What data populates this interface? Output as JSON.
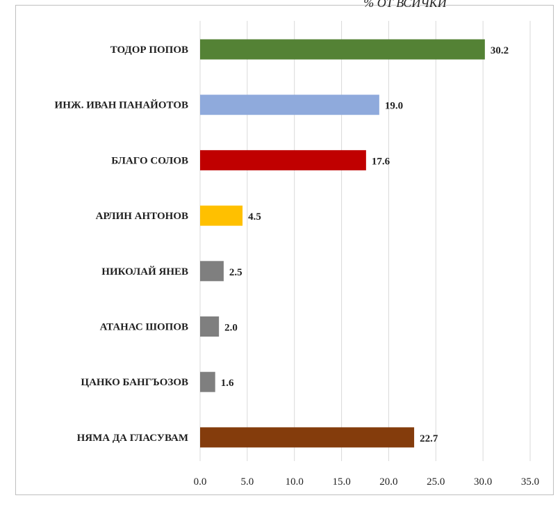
{
  "chart_data": {
    "type": "bar",
    "orientation": "horizontal",
    "title": "% ОТ ВСИЧКИ",
    "xlabel": "",
    "ylabel": "",
    "categories": [
      "ТОДОР ПОПОВ",
      "ИНЖ. ИВАН ПАНАЙОТОВ",
      "БЛАГО СОЛОВ",
      "АРЛИН АНТОНОВ",
      "НИКОЛАЙ ЯНЕВ",
      "АТАНАС ШОПОВ",
      "ЦАНКО БАНГЪОЗОВ",
      "НЯМА ДА ГЛАСУВАМ"
    ],
    "values": [
      30.2,
      19.0,
      17.6,
      4.5,
      2.5,
      2.0,
      1.6,
      22.7
    ],
    "value_labels": [
      "30.2",
      "19.0",
      "17.6",
      "4.5",
      "2.5",
      "2.0",
      "1.6",
      "22.7"
    ],
    "colors": [
      "#548235",
      "#8faadc",
      "#c00000",
      "#ffc000",
      "#7f7f7f",
      "#7f7f7f",
      "#7f7f7f",
      "#843c0c"
    ],
    "xlim": [
      0,
      35
    ],
    "x_ticks": [
      "0.0",
      "5.0",
      "10.0",
      "15.0",
      "20.0",
      "25.0",
      "30.0",
      "35.0"
    ],
    "grid": "vertical",
    "legend": "none"
  }
}
